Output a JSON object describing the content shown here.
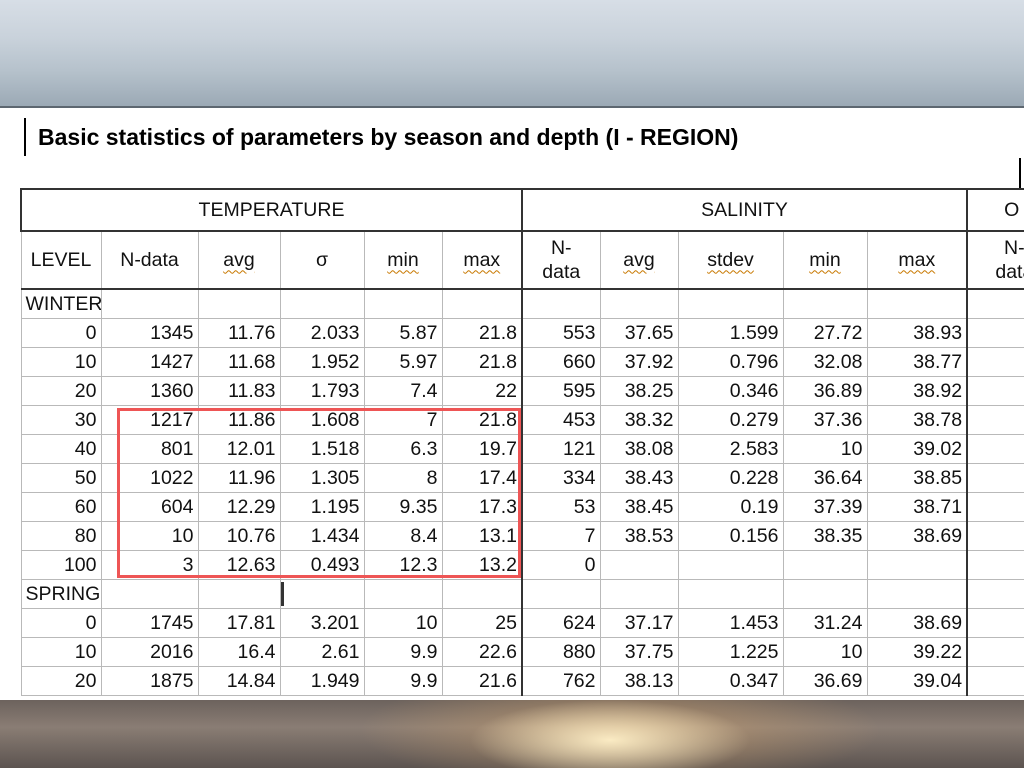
{
  "title": "Basic statistics of parameters by season and depth (I - REGION)",
  "groups": {
    "temperature": "TEMPERATURE",
    "salinity": "SALINITY",
    "third_partial": "O"
  },
  "columns": {
    "level": "LEVEL",
    "t_ndata": "N-data",
    "t_avg": "avg",
    "t_sigma": "σ",
    "t_min": "min",
    "t_max": "max",
    "s_ndata_1": "N-",
    "s_ndata_2": "data",
    "s_avg": "avg",
    "s_stdev": "stdev",
    "s_min": "min",
    "s_max": "max",
    "o_ndata_1": "N-",
    "o_ndata_2": "data"
  },
  "seasons": {
    "winter": "WINTER",
    "spring": "SPRING"
  },
  "winter_rows": [
    {
      "level": "0",
      "t_n": "1345",
      "t_avg": "11.76",
      "t_sigma": "2.033",
      "t_min": "5.87",
      "t_max": "21.8",
      "s_n": "553",
      "s_avg": "37.65",
      "s_stdev": "1.599",
      "s_min": "27.72",
      "s_max": "38.93"
    },
    {
      "level": "10",
      "t_n": "1427",
      "t_avg": "11.68",
      "t_sigma": "1.952",
      "t_min": "5.97",
      "t_max": "21.8",
      "s_n": "660",
      "s_avg": "37.92",
      "s_stdev": "0.796",
      "s_min": "32.08",
      "s_max": "38.77"
    },
    {
      "level": "20",
      "t_n": "1360",
      "t_avg": "11.83",
      "t_sigma": "1.793",
      "t_min": "7.4",
      "t_max": "22",
      "s_n": "595",
      "s_avg": "38.25",
      "s_stdev": "0.346",
      "s_min": "36.89",
      "s_max": "38.92"
    },
    {
      "level": "30",
      "t_n": "1217",
      "t_avg": "11.86",
      "t_sigma": "1.608",
      "t_min": "7",
      "t_max": "21.8",
      "s_n": "453",
      "s_avg": "38.32",
      "s_stdev": "0.279",
      "s_min": "37.36",
      "s_max": "38.78"
    },
    {
      "level": "40",
      "t_n": "801",
      "t_avg": "12.01",
      "t_sigma": "1.518",
      "t_min": "6.3",
      "t_max": "19.7",
      "s_n": "121",
      "s_avg": "38.08",
      "s_stdev": "2.583",
      "s_min": "10",
      "s_max": "39.02"
    },
    {
      "level": "50",
      "t_n": "1022",
      "t_avg": "11.96",
      "t_sigma": "1.305",
      "t_min": "8",
      "t_max": "17.4",
      "s_n": "334",
      "s_avg": "38.43",
      "s_stdev": "0.228",
      "s_min": "36.64",
      "s_max": "38.85"
    },
    {
      "level": "60",
      "t_n": "604",
      "t_avg": "12.29",
      "t_sigma": "1.195",
      "t_min": "9.35",
      "t_max": "17.3",
      "s_n": "53",
      "s_avg": "38.45",
      "s_stdev": "0.19",
      "s_min": "37.39",
      "s_max": "38.71"
    },
    {
      "level": "80",
      "t_n": "10",
      "t_avg": "10.76",
      "t_sigma": "1.434",
      "t_min": "8.4",
      "t_max": "13.1",
      "s_n": "7",
      "s_avg": "38.53",
      "s_stdev": "0.156",
      "s_min": "38.35",
      "s_max": "38.69"
    },
    {
      "level": "100",
      "t_n": "3",
      "t_avg": "12.63",
      "t_sigma": "0.493",
      "t_min": "12.3",
      "t_max": "13.2",
      "s_n": "0",
      "s_avg": "",
      "s_stdev": "",
      "s_min": "",
      "s_max": ""
    }
  ],
  "spring_rows": [
    {
      "level": "0",
      "t_n": "1745",
      "t_avg": "17.81",
      "t_sigma": "3.201",
      "t_min": "10",
      "t_max": "25",
      "s_n": "624",
      "s_avg": "37.17",
      "s_stdev": "1.453",
      "s_min": "31.24",
      "s_max": "38.69"
    },
    {
      "level": "10",
      "t_n": "2016",
      "t_avg": "16.4",
      "t_sigma": "2.61",
      "t_min": "9.9",
      "t_max": "22.6",
      "s_n": "880",
      "s_avg": "37.75",
      "s_stdev": "1.225",
      "s_min": "10",
      "s_max": "39.22"
    },
    {
      "level": "20",
      "t_n": "1875",
      "t_avg": "14.84",
      "t_sigma": "1.949",
      "t_min": "9.9",
      "t_max": "21.6",
      "s_n": "762",
      "s_avg": "38.13",
      "s_stdev": "0.347",
      "s_min": "36.69",
      "s_max": "39.04"
    }
  ],
  "colors": {
    "highlight": "#ee5555",
    "underline": "#c87800"
  }
}
